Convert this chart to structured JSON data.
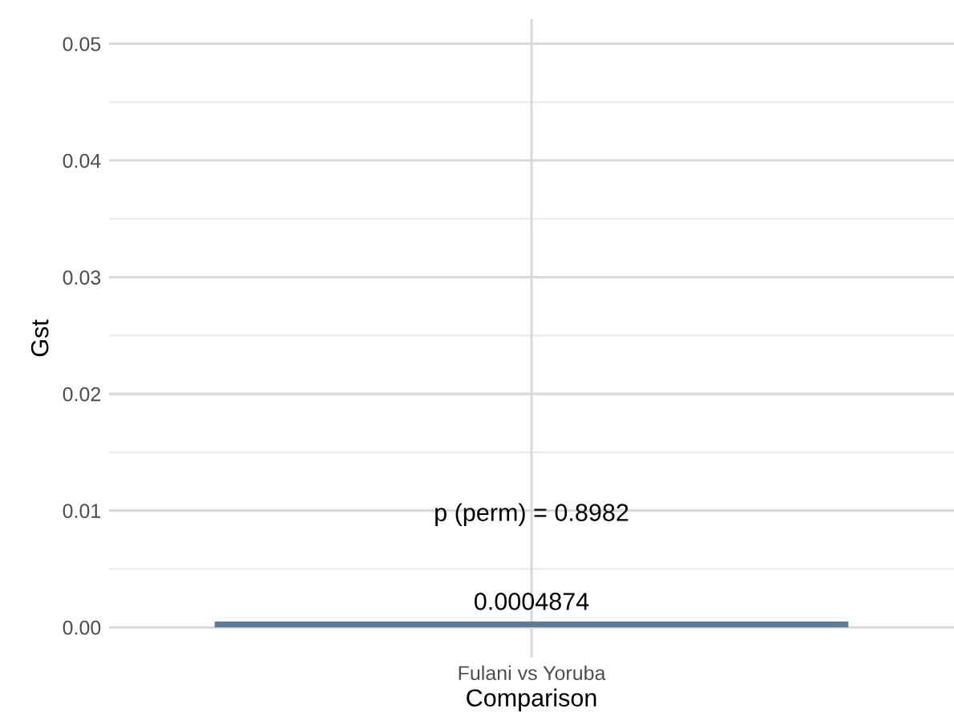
{
  "chart_data": {
    "type": "bar",
    "xlabel": "Comparison",
    "ylabel": "Gst",
    "categories": [
      "Fulani vs Yoruba"
    ],
    "values": [
      0.0004874
    ],
    "color": "#5b7c99",
    "data_labels": true,
    "ylim": [
      -0.0026,
      0.0521
    ],
    "yticks": [
      {
        "value": 0,
        "label": "0.00"
      },
      {
        "value": 0.01,
        "label": "0.01"
      },
      {
        "value": 0.02,
        "label": "0.02"
      },
      {
        "value": 0.03,
        "label": "0.03"
      },
      {
        "value": 0.04,
        "label": "0.04"
      },
      {
        "value": 0.05,
        "label": "0.05"
      }
    ],
    "annotations": [
      "p (perm) = 0.8982"
    ],
    "grid": true
  }
}
